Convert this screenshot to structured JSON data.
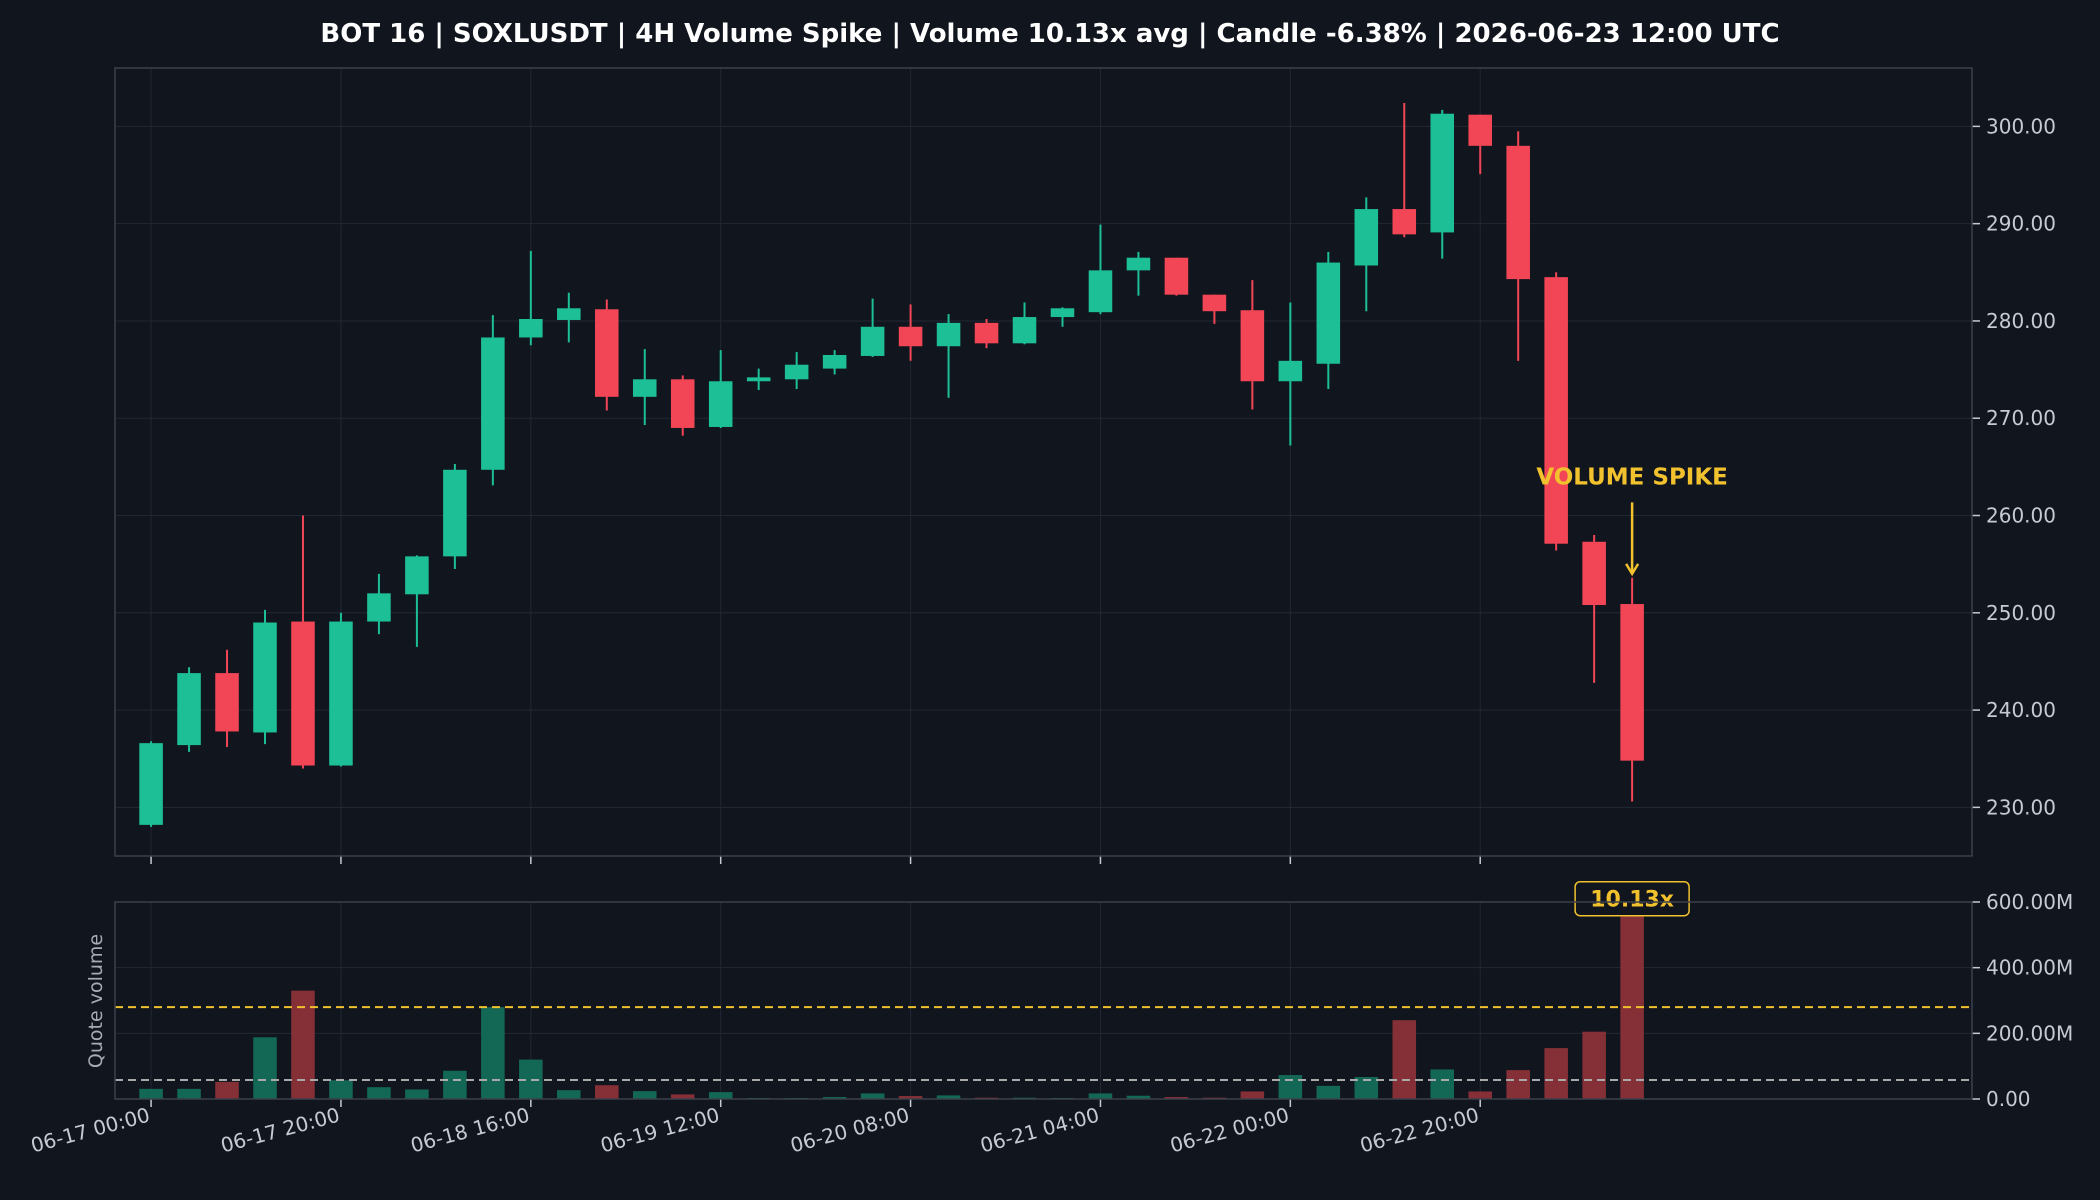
{
  "chart_data": {
    "type": "candlestick",
    "title": "BOT 16 | SOXLUSDT | 4H Volume Spike | Volume 10.13x avg | Candle -6.38% | 2026-06-23 12:00 UTC",
    "colors": {
      "background": "#11151e",
      "up": "#1dbf97",
      "down": "#f24656",
      "annotation": "#f2c12e",
      "text": "#c5cad3",
      "title": "#ffffff",
      "grid": "#222833",
      "spine": "#3a404b"
    },
    "price_panel": {
      "ylim": [
        225,
        306
      ],
      "yticks": [
        230,
        240,
        250,
        260,
        270,
        280,
        290,
        300
      ],
      "ytick_labels": [
        "230.00",
        "240.00",
        "250.00",
        "260.00",
        "270.00",
        "280.00",
        "290.00",
        "300.00"
      ],
      "grid": true
    },
    "volume_panel": {
      "ylabel": "Quote volume",
      "ylim": [
        0,
        600
      ],
      "yticks": [
        0,
        200,
        400,
        600
      ],
      "ytick_labels": [
        "0.00",
        "200.00M",
        "400.00M",
        "600.00M"
      ],
      "reference_lines": [
        {
          "value": 280,
          "color": "#f2c12e"
        },
        {
          "value": 58,
          "color": "#aaaaaa"
        }
      ],
      "grid": true
    },
    "xaxis": {
      "xlim": [
        -0.95,
        47.95
      ],
      "tick_positions": [
        0,
        5,
        10,
        15,
        20,
        25,
        30,
        35
      ],
      "tick_labels": [
        "06-17 00:00",
        "06-17 20:00",
        "06-18 16:00",
        "06-19 12:00",
        "06-20 08:00",
        "06-21 04:00",
        "06-22 00:00",
        "06-22 20:00"
      ]
    },
    "candles": [
      {
        "o": 228.2,
        "h": 236.8,
        "l": 228.0,
        "c": 236.6,
        "v": 31
      },
      {
        "o": 236.4,
        "h": 244.4,
        "l": 235.7,
        "c": 243.8,
        "v": 31
      },
      {
        "o": 243.8,
        "h": 246.2,
        "l": 236.2,
        "c": 237.8,
        "v": 52
      },
      {
        "o": 237.7,
        "h": 250.3,
        "l": 236.5,
        "c": 249.0,
        "v": 188
      },
      {
        "o": 249.1,
        "h": 260.0,
        "l": 234.0,
        "c": 234.3,
        "v": 330
      },
      {
        "o": 234.3,
        "h": 250.0,
        "l": 234.2,
        "c": 249.1,
        "v": 57
      },
      {
        "o": 249.1,
        "h": 254.0,
        "l": 247.8,
        "c": 252.0,
        "v": 36
      },
      {
        "o": 251.9,
        "h": 255.9,
        "l": 246.5,
        "c": 255.8,
        "v": 29
      },
      {
        "o": 255.8,
        "h": 265.3,
        "l": 254.5,
        "c": 264.7,
        "v": 86
      },
      {
        "o": 264.7,
        "h": 280.6,
        "l": 263.1,
        "c": 278.3,
        "v": 280
      },
      {
        "o": 278.3,
        "h": 287.2,
        "l": 277.5,
        "c": 280.2,
        "v": 120
      },
      {
        "o": 280.1,
        "h": 282.9,
        "l": 277.8,
        "c": 281.3,
        "v": 27
      },
      {
        "o": 281.2,
        "h": 282.2,
        "l": 270.8,
        "c": 272.2,
        "v": 42
      },
      {
        "o": 272.2,
        "h": 277.1,
        "l": 269.3,
        "c": 274.0,
        "v": 24
      },
      {
        "o": 274.0,
        "h": 274.4,
        "l": 268.2,
        "c": 269.0,
        "v": 14
      },
      {
        "o": 269.1,
        "h": 277.0,
        "l": 269.0,
        "c": 273.8,
        "v": 21
      },
      {
        "o": 273.8,
        "h": 275.1,
        "l": 272.9,
        "c": 274.2,
        "v": 3
      },
      {
        "o": 274.0,
        "h": 276.8,
        "l": 273.0,
        "c": 275.5,
        "v": 3
      },
      {
        "o": 275.1,
        "h": 277.0,
        "l": 274.5,
        "c": 276.5,
        "v": 6
      },
      {
        "o": 276.4,
        "h": 282.3,
        "l": 276.3,
        "c": 279.4,
        "v": 17
      },
      {
        "o": 279.4,
        "h": 281.7,
        "l": 275.9,
        "c": 277.4,
        "v": 9
      },
      {
        "o": 277.4,
        "h": 280.7,
        "l": 272.1,
        "c": 279.8,
        "v": 11
      },
      {
        "o": 279.8,
        "h": 280.2,
        "l": 277.2,
        "c": 277.7,
        "v": 4
      },
      {
        "o": 277.7,
        "h": 281.9,
        "l": 277.6,
        "c": 280.4,
        "v": 4
      },
      {
        "o": 280.4,
        "h": 281.4,
        "l": 279.4,
        "c": 281.3,
        "v": 3
      },
      {
        "o": 280.9,
        "h": 289.9,
        "l": 280.7,
        "c": 285.2,
        "v": 17
      },
      {
        "o": 285.2,
        "h": 287.1,
        "l": 282.6,
        "c": 286.5,
        "v": 10
      },
      {
        "o": 286.5,
        "h": 286.5,
        "l": 282.6,
        "c": 282.7,
        "v": 6
      },
      {
        "o": 282.7,
        "h": 282.7,
        "l": 279.7,
        "c": 281.0,
        "v": 4
      },
      {
        "o": 281.1,
        "h": 284.2,
        "l": 270.9,
        "c": 273.8,
        "v": 23
      },
      {
        "o": 273.8,
        "h": 281.9,
        "l": 267.2,
        "c": 275.9,
        "v": 73
      },
      {
        "o": 275.6,
        "h": 287.1,
        "l": 273.0,
        "c": 286.0,
        "v": 40
      },
      {
        "o": 285.7,
        "h": 292.7,
        "l": 281.0,
        "c": 291.5,
        "v": 67
      },
      {
        "o": 291.5,
        "h": 302.4,
        "l": 288.6,
        "c": 288.9,
        "v": 240
      },
      {
        "o": 289.1,
        "h": 301.7,
        "l": 286.4,
        "c": 301.3,
        "v": 90
      },
      {
        "o": 301.2,
        "h": 301.2,
        "l": 295.1,
        "c": 298.0,
        "v": 23
      },
      {
        "o": 298.0,
        "h": 299.5,
        "l": 275.9,
        "c": 284.3,
        "v": 88
      },
      {
        "o": 284.5,
        "h": 285.0,
        "l": 256.4,
        "c": 257.1,
        "v": 155
      },
      {
        "o": 257.3,
        "h": 258.0,
        "l": 242.8,
        "c": 250.8,
        "v": 205
      },
      {
        "o": 250.9,
        "h": 253.6,
        "l": 230.6,
        "c": 234.8,
        "v": 600
      }
    ],
    "annotations": [
      {
        "text": "VOLUME SPIKE",
        "candle_index": 39,
        "y": 263.2,
        "arrow_to": 254.0
      },
      {
        "text": "10.13x",
        "candle_index": 39,
        "y": 610
      }
    ]
  }
}
